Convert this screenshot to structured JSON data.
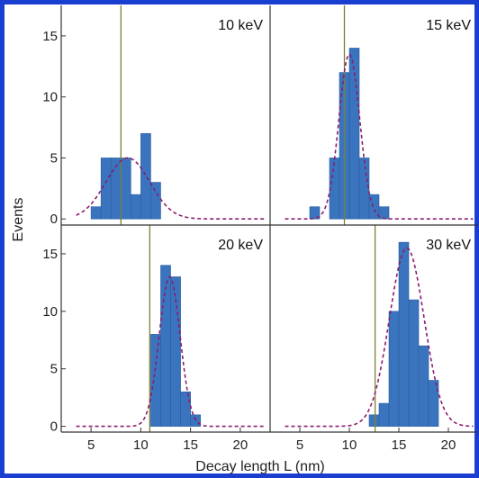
{
  "chart_data": {
    "type": "bar",
    "xlabel": "Decay length L (nm)",
    "ylabel": "Events",
    "xlim": [
      2,
      23
    ],
    "ylim": [
      -0.5,
      17.5
    ],
    "x_ticks": [
      5,
      10,
      15,
      20
    ],
    "y_ticks": [
      0,
      5,
      10,
      15
    ],
    "bin_width": 1,
    "colors": {
      "bar": "#3a74be",
      "bar_edge": "#2a5c9e",
      "fit": "#8a1d6e",
      "marker": "#7c7f36"
    },
    "panels": [
      {
        "title": "10 keV",
        "bins": [
          {
            "x": 5,
            "y": 1
          },
          {
            "x": 6,
            "y": 5
          },
          {
            "x": 7,
            "y": 5
          },
          {
            "x": 8,
            "y": 5
          },
          {
            "x": 9,
            "y": 2
          },
          {
            "x": 10,
            "y": 7
          },
          {
            "x": 11,
            "y": 3
          }
        ],
        "fit": {
          "mean": 8.7,
          "sigma": 2.2,
          "amp": 5.0
        },
        "marker_x": 8.0
      },
      {
        "title": "15 keV",
        "bins": [
          {
            "x": 6,
            "y": 1
          },
          {
            "x": 7,
            "y": 0
          },
          {
            "x": 8,
            "y": 5
          },
          {
            "x": 9,
            "y": 12
          },
          {
            "x": 10,
            "y": 14
          },
          {
            "x": 11,
            "y": 5
          },
          {
            "x": 12,
            "y": 2
          },
          {
            "x": 13,
            "y": 1
          }
        ],
        "fit": {
          "mean": 10.0,
          "sigma": 1.05,
          "amp": 13.5
        },
        "marker_x": 9.5
      },
      {
        "title": "20 keV",
        "bins": [
          {
            "x": 11,
            "y": 8
          },
          {
            "x": 12,
            "y": 14
          },
          {
            "x": 13,
            "y": 13
          },
          {
            "x": 14,
            "y": 3
          },
          {
            "x": 15,
            "y": 1
          }
        ],
        "fit": {
          "mean": 12.9,
          "sigma": 1.05,
          "amp": 13.0
        },
        "marker_x": 10.9
      },
      {
        "title": "30 keV",
        "bins": [
          {
            "x": 12,
            "y": 1
          },
          {
            "x": 13,
            "y": 2
          },
          {
            "x": 14,
            "y": 10
          },
          {
            "x": 15,
            "y": 16
          },
          {
            "x": 16,
            "y": 11
          },
          {
            "x": 17,
            "y": 7
          },
          {
            "x": 18,
            "y": 4
          }
        ],
        "fit": {
          "mean": 15.8,
          "sigma": 1.75,
          "amp": 15.5
        },
        "marker_x": 12.6
      }
    ]
  }
}
